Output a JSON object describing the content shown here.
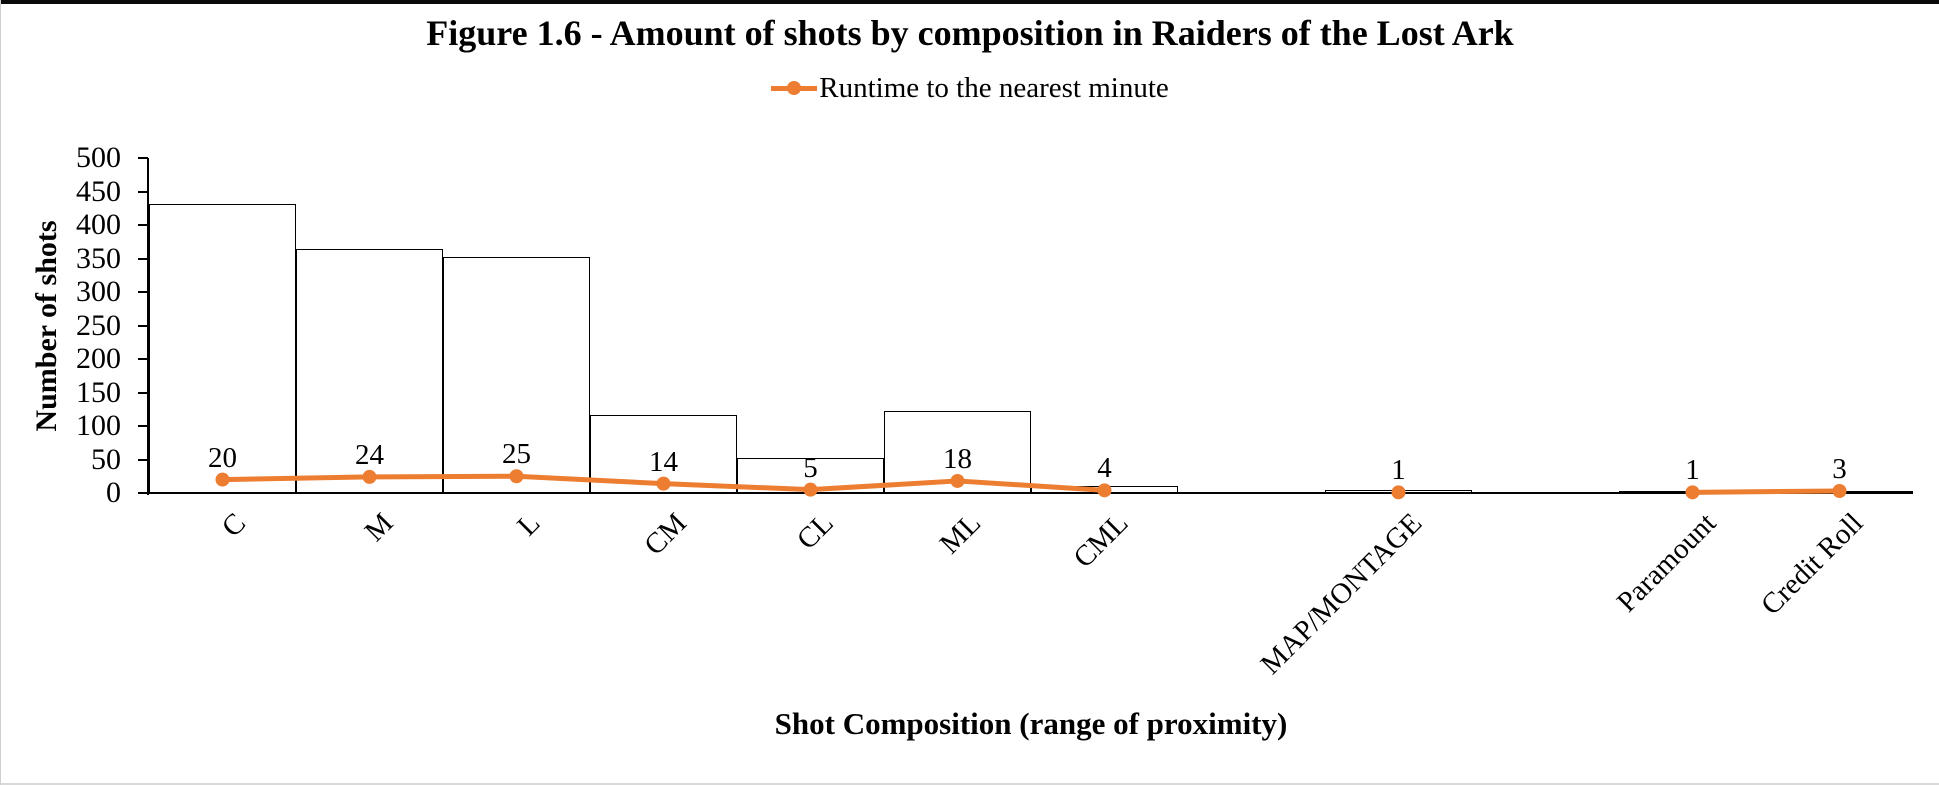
{
  "chart_data": {
    "type": "bar",
    "subtype": "combo-bar-line",
    "title": "Figure 1.6 - Amount of shots by composition in Raiders of the Lost Ark",
    "xlabel": "Shot Composition (range of proximity)",
    "ylabel": "Number of shots",
    "ylim": [
      0,
      500
    ],
    "y_tick_step": 50,
    "grid": false,
    "legend_position": "top-center",
    "categories": [
      "C",
      "M",
      "L",
      "CM",
      "CL",
      "ML",
      "CML",
      "MAP/MONTAGE",
      "Paramount",
      "Credit Roll"
    ],
    "category_slots": [
      0,
      1,
      2,
      3,
      4,
      5,
      6,
      8,
      10,
      11
    ],
    "total_slots": 12,
    "series": [
      {
        "name": "Number of shots",
        "type": "bar",
        "bar_fill": "#FFFFFF",
        "bar_border": "#000000",
        "values": [
          432,
          364,
          352,
          117,
          52,
          123,
          10,
          5,
          3,
          3
        ],
        "in_legend": false
      },
      {
        "name": "Runtime to the nearest minute",
        "type": "line",
        "color": "#ED7D31",
        "values": [
          20,
          24,
          25,
          14,
          5,
          18,
          4,
          1,
          1,
          3
        ],
        "data_labels": [
          "20",
          "24",
          "25",
          "14",
          "5",
          "18",
          "4",
          "1",
          "1",
          "3"
        ],
        "segments": [
          [
            0,
            6
          ],
          [
            7,
            7
          ],
          [
            8,
            9
          ]
        ],
        "in_legend": true
      }
    ]
  }
}
